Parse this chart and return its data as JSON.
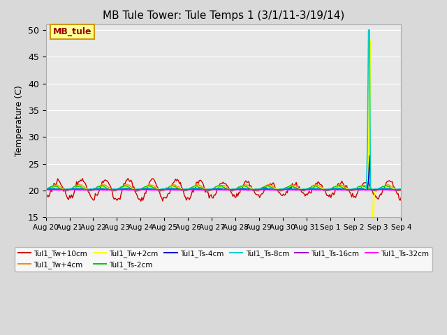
{
  "title": "MB Tule Tower: Tule Temps 1 (3/1/11-3/19/14)",
  "ylabel": "Temperature (C)",
  "ylim": [
    15,
    51
  ],
  "yticks": [
    15,
    20,
    25,
    30,
    35,
    40,
    45,
    50
  ],
  "plot_bg_color": "#e8e8e8",
  "fig_bg_color": "#d9d9d9",
  "series": [
    {
      "label": "Tul1_Tw+10cm",
      "color": "#cc0000",
      "lw": 1.0
    },
    {
      "label": "Tul1_Tw+4cm",
      "color": "#ff8800",
      "lw": 1.0
    },
    {
      "label": "Tul1_Tw+2cm",
      "color": "#ffff00",
      "lw": 1.2
    },
    {
      "label": "Tul1_Ts-2cm",
      "color": "#00cc00",
      "lw": 1.0
    },
    {
      "label": "Tul1_Ts-4cm",
      "color": "#0000cc",
      "lw": 1.0
    },
    {
      "label": "Tul1_Ts-8cm",
      "color": "#00cccc",
      "lw": 1.2
    },
    {
      "label": "Tul1_Ts-16cm",
      "color": "#9900cc",
      "lw": 1.0
    },
    {
      "label": "Tul1_Ts-32cm",
      "color": "#ff00ff",
      "lw": 1.0
    }
  ],
  "x_labels": [
    "Aug 20",
    "Aug 21",
    "Aug 22",
    "Aug 23",
    "Aug 24",
    "Aug 25",
    "Aug 26",
    "Aug 27",
    "Aug 28",
    "Aug 29",
    "Aug 30",
    "Aug 31",
    "Sep 1",
    "Sep 2",
    "Sep 3",
    "Sep 4"
  ],
  "legend_label": "MB_tule",
  "legend_bg": "#ffff99",
  "legend_border": "#cc9900",
  "legend_text_color": "#990000"
}
